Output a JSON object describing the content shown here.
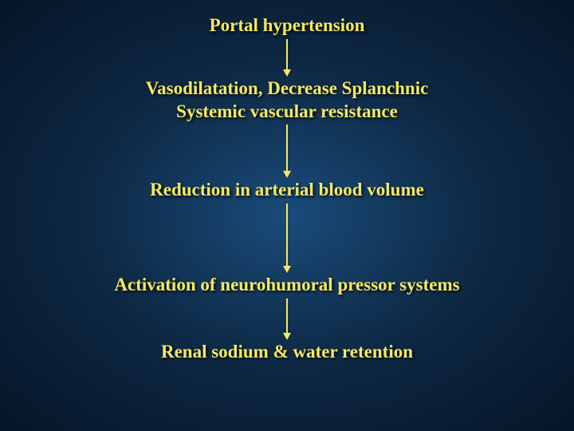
{
  "diagram": {
    "type": "flowchart",
    "background_gradient": [
      "#1a4b7a",
      "#0d2843",
      "#061527"
    ],
    "text_color": "#f5e960",
    "arrow_color": "#f5e960",
    "font_family": "Times New Roman",
    "font_weight": "bold",
    "nodes": [
      {
        "id": "n1",
        "line1": "Portal hypertension",
        "line2": "",
        "fontsize": 23
      },
      {
        "id": "n2",
        "line1": "Vasodilatation, Decrease Splanchnic",
        "line2": "Systemic vascular resistance",
        "fontsize": 23
      },
      {
        "id": "n3",
        "line1": "Reduction in arterial blood volume",
        "line2": "",
        "fontsize": 23
      },
      {
        "id": "n4",
        "line1": "Activation of neurohumoral pressor systems",
        "line2": "",
        "fontsize": 23
      },
      {
        "id": "n5",
        "line1": "Renal sodium & water retention",
        "line2": "",
        "fontsize": 23
      }
    ],
    "arrows": [
      {
        "from": "n1",
        "to": "n2",
        "length": 50
      },
      {
        "from": "n2",
        "to": "n3",
        "length": 70
      },
      {
        "from": "n3",
        "to": "n4",
        "length": 90
      },
      {
        "from": "n4",
        "to": "n5",
        "length": 55
      }
    ]
  }
}
